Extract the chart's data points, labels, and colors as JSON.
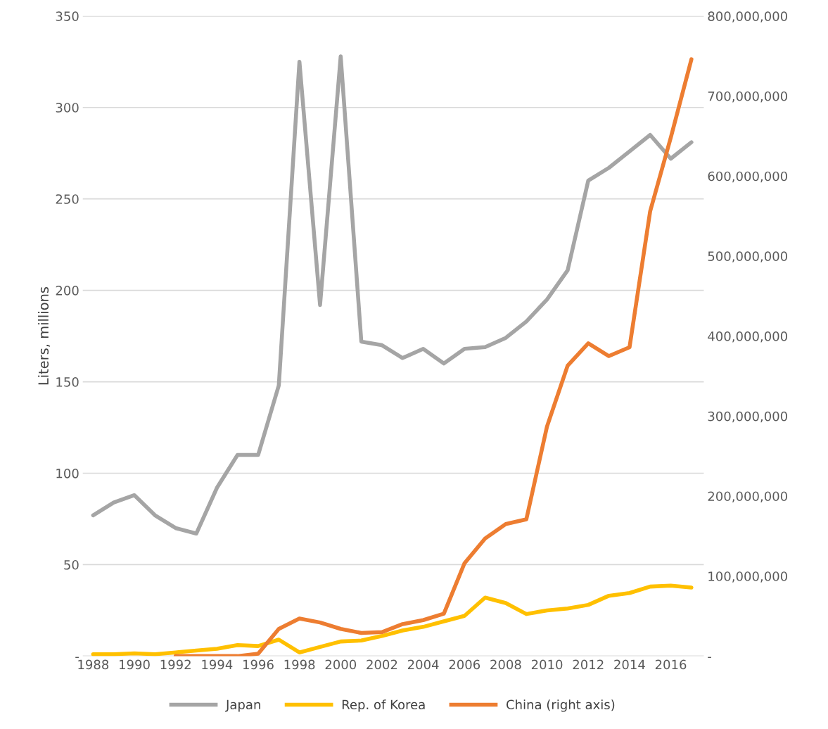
{
  "chart_data": {
    "type": "line",
    "ylabel": "Liters, millions",
    "x": [
      1988,
      1989,
      1990,
      1991,
      1992,
      1993,
      1994,
      1995,
      1996,
      1997,
      1998,
      1999,
      2000,
      2001,
      2002,
      2003,
      2004,
      2005,
      2006,
      2007,
      2008,
      2009,
      2010,
      2011,
      2012,
      2013,
      2014,
      2015,
      2016,
      2017
    ],
    "series": [
      {
        "name": "Japan",
        "color": "#a5a5a5",
        "values": [
          77,
          84,
          88,
          77,
          70,
          67,
          92,
          110,
          110,
          148,
          325,
          192,
          328,
          172,
          170,
          163,
          168,
          160,
          168,
          169,
          174,
          183,
          195,
          211,
          260,
          267,
          276,
          285,
          272,
          281
        ]
      },
      {
        "name": "Rep. of Korea",
        "color": "#ffc000",
        "values": [
          1,
          1,
          1.5,
          1,
          2,
          3,
          4,
          6,
          5.5,
          9,
          2,
          5,
          8,
          8.5,
          11,
          14,
          16,
          19,
          22,
          32,
          29,
          23,
          25,
          26,
          28,
          33,
          34.5,
          38,
          38.5,
          37.5
        ]
      },
      {
        "name": "China (right axis)",
        "color": "#ed7d31",
        "axis": "y2",
        "x": [
          1992,
          1993,
          1994,
          1995,
          1996,
          1997,
          1998,
          1999,
          2000,
          2001,
          2002,
          2003,
          2004,
          2005,
          2006,
          2007,
          2008,
          2009,
          2010,
          2011,
          2012,
          2013,
          2014,
          2015,
          2016,
          2017
        ],
        "values": [
          0,
          0,
          0,
          0,
          3000000,
          34000000,
          47000000,
          42000000,
          34000000,
          29000000,
          30000000,
          40000000,
          45000000,
          53000000,
          116000000,
          147000000,
          165000000,
          171000000,
          287000000,
          363000000,
          391000000,
          375000000,
          386000000,
          556000000,
          648000000,
          746000000
        ]
      }
    ],
    "xlim": [
      1987.5,
      2017.6
    ],
    "xticks": [
      1988,
      1990,
      1992,
      1994,
      1996,
      1998,
      2000,
      2002,
      2004,
      2006,
      2008,
      2010,
      2012,
      2014,
      2016
    ],
    "ylim": [
      0,
      350
    ],
    "yticks": [
      {
        "value": 0,
        "label": "-"
      },
      50,
      100,
      150,
      200,
      250,
      300,
      350
    ],
    "y2lim": [
      0,
      800000000
    ],
    "y2ticks": [
      {
        "value": 0,
        "label": "-"
      },
      {
        "value": 100000000,
        "label": "100,000,000"
      },
      {
        "value": 200000000,
        "label": "200,000,000"
      },
      {
        "value": 300000000,
        "label": "300,000,000"
      },
      {
        "value": 400000000,
        "label": "400,000,000"
      },
      {
        "value": 500000000,
        "label": "500,000,000"
      },
      {
        "value": 600000000,
        "label": "600,000,000"
      },
      {
        "value": 700000000,
        "label": "700,000,000"
      },
      {
        "value": 800000000,
        "label": "800,000,000"
      }
    ],
    "grid": "y",
    "legend": "bottom",
    "line_style": "solid",
    "marker": "none"
  }
}
